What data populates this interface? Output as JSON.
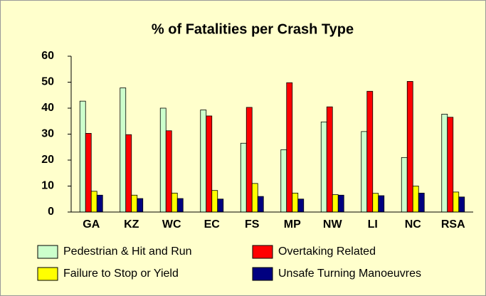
{
  "chart_data": {
    "type": "bar",
    "title": "% of Fatalities per Crash Type",
    "categories": [
      "GA",
      "KZ",
      "WC",
      "EC",
      "FS",
      "MP",
      "NW",
      "LI",
      "NC",
      "RSA"
    ],
    "series": [
      {
        "name": "Pedestrian & Hit and Run",
        "color": "#ccffcc",
        "values": [
          42.7,
          47.8,
          40,
          39.3,
          26.5,
          24,
          34.7,
          31,
          21,
          37.7
        ]
      },
      {
        "name": "Overtaking Related",
        "color": "#ff0000",
        "values": [
          30.3,
          29.8,
          31.3,
          37,
          40.3,
          49.8,
          40.5,
          46.5,
          50.3,
          36.5
        ]
      },
      {
        "name": "Failure to Stop or Yield",
        "color": "#ffff00",
        "values": [
          8,
          6.5,
          7.3,
          8.3,
          11,
          7.3,
          6.7,
          7.2,
          10,
          7.7
        ]
      },
      {
        "name": "Unsafe Turning Manoeuvres",
        "color": "#000080",
        "values": [
          6.5,
          5.2,
          5.2,
          5,
          6,
          5,
          6.5,
          6.3,
          7.3,
          5.8
        ]
      }
    ],
    "ylim": [
      0,
      60
    ],
    "yticks": [
      0,
      10,
      20,
      30,
      40,
      50,
      60
    ],
    "grid": false
  }
}
